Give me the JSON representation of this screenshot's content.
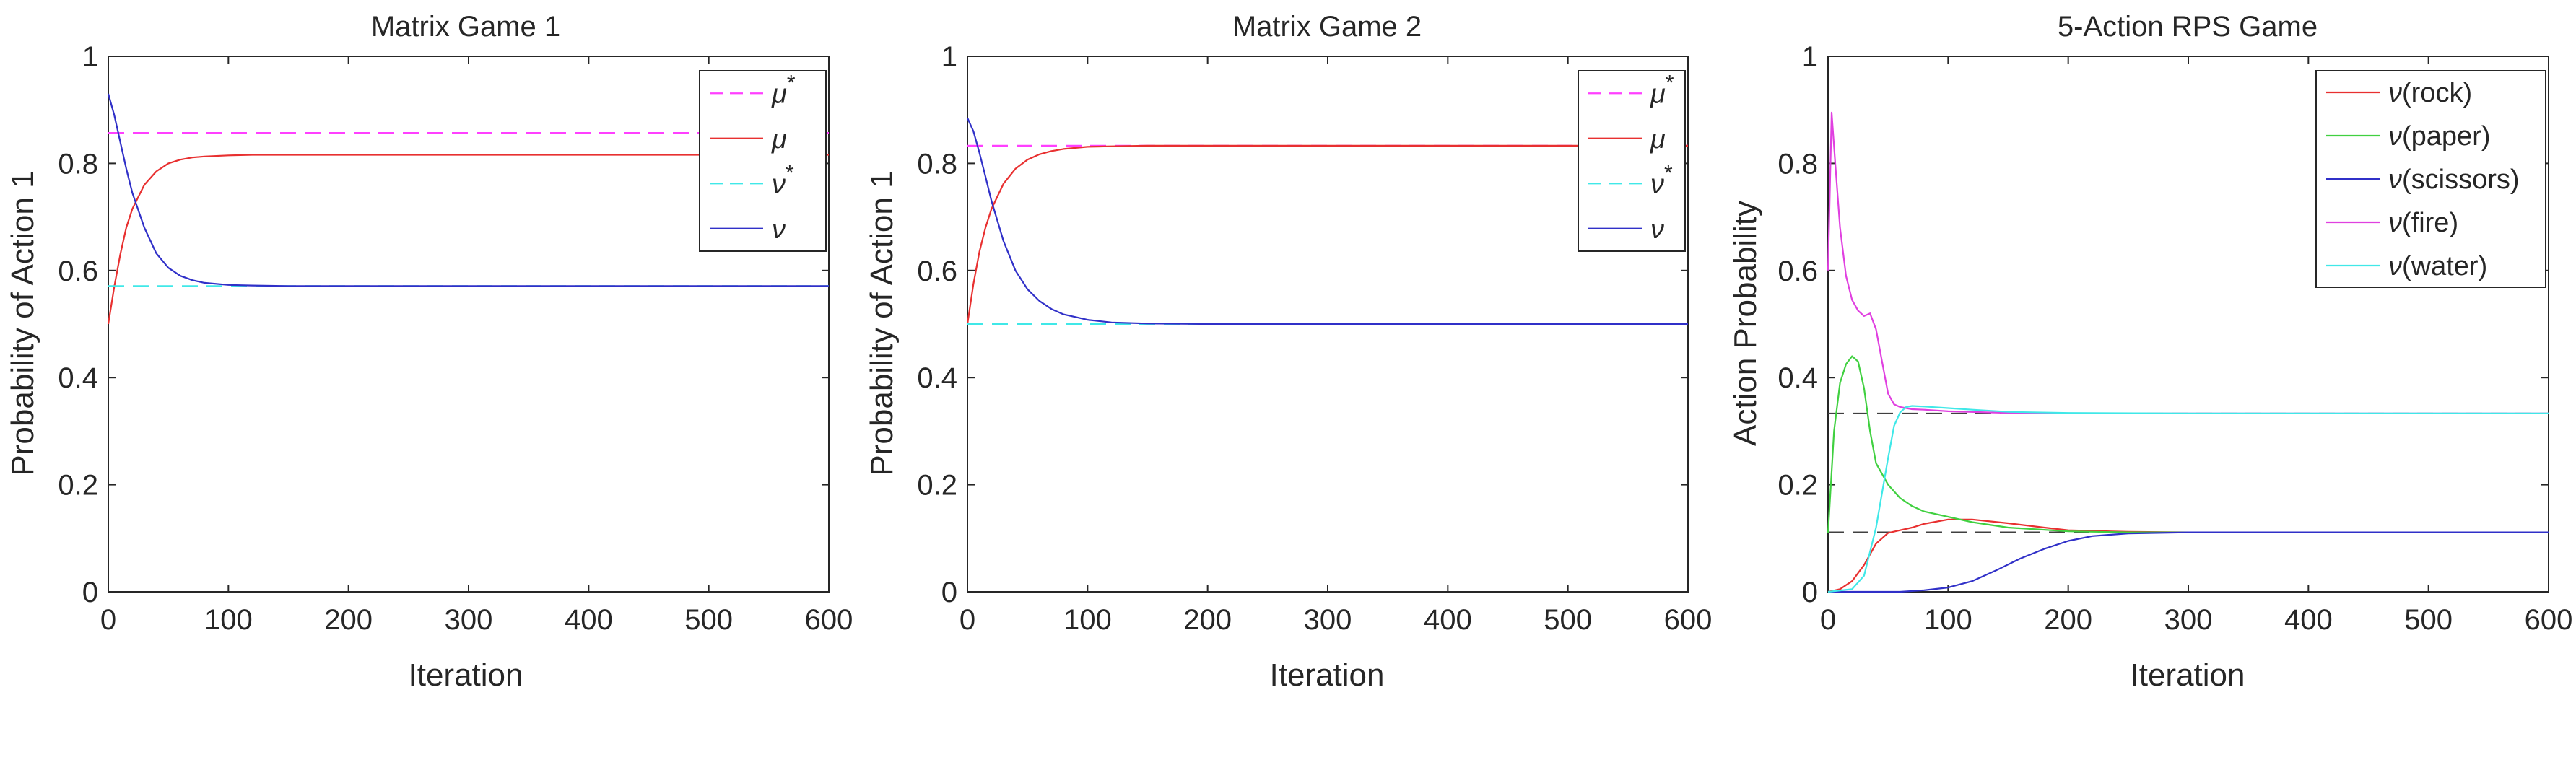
{
  "chart_data": [
    {
      "type": "line",
      "title": "Matrix Game 1",
      "xlabel": "Iteration",
      "ylabel": "Probability of Action 1",
      "xlim": [
        0,
        600
      ],
      "ylim": [
        0,
        1
      ],
      "xticks": [
        0,
        100,
        200,
        300,
        400,
        500,
        600
      ],
      "yticks": [
        0,
        0.2,
        0.4,
        0.6,
        0.8,
        1
      ],
      "grid": false,
      "legend_position": "top-right",
      "series": [
        {
          "name": "μ*",
          "legend_base": "μ",
          "legend_sup": "*",
          "style": "dashed",
          "color": "#ff40ff",
          "x": [
            0,
            600
          ],
          "y": [
            0.857,
            0.857
          ]
        },
        {
          "name": "μ",
          "legend_base": "μ",
          "legend_sup": "",
          "style": "solid",
          "color": "#e83030",
          "x": [
            0,
            5,
            10,
            15,
            20,
            30,
            40,
            50,
            60,
            70,
            80,
            100,
            120,
            150,
            200,
            300,
            400,
            500,
            600
          ],
          "y": [
            0.5,
            0.57,
            0.63,
            0.68,
            0.715,
            0.76,
            0.785,
            0.8,
            0.807,
            0.811,
            0.813,
            0.815,
            0.816,
            0.816,
            0.816,
            0.816,
            0.816,
            0.816,
            0.816
          ]
        },
        {
          "name": "ν*",
          "legend_base": "ν",
          "legend_sup": "*",
          "style": "dashed",
          "color": "#40e8e8",
          "x": [
            0,
            600
          ],
          "y": [
            0.571,
            0.571
          ]
        },
        {
          "name": "ν",
          "legend_base": "ν",
          "legend_sup": "",
          "style": "solid",
          "color": "#3030c8",
          "x": [
            0,
            5,
            10,
            15,
            20,
            30,
            40,
            50,
            60,
            70,
            80,
            100,
            120,
            150,
            200,
            300,
            400,
            500,
            600
          ],
          "y": [
            0.93,
            0.89,
            0.84,
            0.79,
            0.745,
            0.68,
            0.632,
            0.605,
            0.59,
            0.582,
            0.577,
            0.573,
            0.572,
            0.571,
            0.571,
            0.571,
            0.571,
            0.571,
            0.571
          ]
        }
      ]
    },
    {
      "type": "line",
      "title": "Matrix Game 2",
      "xlabel": "Iteration",
      "ylabel": "Probability of Action 1",
      "xlim": [
        0,
        600
      ],
      "ylim": [
        0,
        1
      ],
      "xticks": [
        0,
        100,
        200,
        300,
        400,
        500,
        600
      ],
      "yticks": [
        0,
        0.2,
        0.4,
        0.6,
        0.8,
        1
      ],
      "grid": false,
      "legend_position": "top-right",
      "series": [
        {
          "name": "μ*",
          "legend_base": "μ",
          "legend_sup": "*",
          "style": "dashed",
          "color": "#ff40ff",
          "x": [
            0,
            600
          ],
          "y": [
            0.833,
            0.833
          ]
        },
        {
          "name": "μ",
          "legend_base": "μ",
          "legend_sup": "",
          "style": "solid",
          "color": "#e83030",
          "x": [
            0,
            5,
            10,
            15,
            20,
            30,
            40,
            50,
            60,
            70,
            80,
            100,
            120,
            150,
            200,
            300,
            400,
            500,
            600
          ],
          "y": [
            0.5,
            0.575,
            0.635,
            0.68,
            0.715,
            0.762,
            0.79,
            0.807,
            0.817,
            0.823,
            0.827,
            0.831,
            0.832,
            0.833,
            0.833,
            0.833,
            0.833,
            0.833,
            0.833
          ]
        },
        {
          "name": "ν*",
          "legend_base": "ν",
          "legend_sup": "*",
          "style": "dashed",
          "color": "#40e8e8",
          "x": [
            0,
            600
          ],
          "y": [
            0.5,
            0.5
          ]
        },
        {
          "name": "ν",
          "legend_base": "ν",
          "legend_sup": "",
          "style": "solid",
          "color": "#3030c8",
          "x": [
            0,
            5,
            10,
            15,
            20,
            30,
            40,
            50,
            60,
            70,
            80,
            100,
            120,
            150,
            200,
            300,
            400,
            500,
            600
          ],
          "y": [
            0.885,
            0.86,
            0.82,
            0.775,
            0.73,
            0.655,
            0.6,
            0.565,
            0.543,
            0.528,
            0.518,
            0.508,
            0.503,
            0.501,
            0.5,
            0.5,
            0.5,
            0.5,
            0.5
          ]
        }
      ]
    },
    {
      "type": "line",
      "title": "5-Action RPS Game",
      "xlabel": "Iteration",
      "ylabel": "Action Probability",
      "xlim": [
        0,
        600
      ],
      "ylim": [
        0,
        1
      ],
      "xticks": [
        0,
        100,
        200,
        300,
        400,
        500,
        600
      ],
      "yticks": [
        0,
        0.2,
        0.4,
        0.6,
        0.8,
        1
      ],
      "grid": false,
      "legend_position": "top-right",
      "reference_lines": [
        {
          "y": 0.333,
          "style": "dashed",
          "color": "#404040"
        },
        {
          "y": 0.111,
          "style": "dashed",
          "color": "#404040"
        }
      ],
      "series": [
        {
          "name": "ν(rock)",
          "legend_base": "ν",
          "legend_suffix": "(rock)",
          "style": "solid",
          "color": "#e83030",
          "x": [
            0,
            10,
            20,
            30,
            40,
            50,
            60,
            70,
            80,
            100,
            120,
            150,
            180,
            200,
            250,
            300,
            400,
            500,
            600
          ],
          "y": [
            0.0,
            0.005,
            0.02,
            0.05,
            0.09,
            0.11,
            0.115,
            0.12,
            0.127,
            0.135,
            0.135,
            0.128,
            0.12,
            0.115,
            0.112,
            0.111,
            0.111,
            0.111,
            0.111
          ]
        },
        {
          "name": "ν(paper)",
          "legend_base": "ν",
          "legend_suffix": "(paper)",
          "style": "solid",
          "color": "#40d040",
          "x": [
            0,
            5,
            10,
            15,
            20,
            25,
            30,
            35,
            40,
            50,
            60,
            70,
            80,
            100,
            120,
            150,
            200,
            250,
            300,
            400,
            500,
            600
          ],
          "y": [
            0.11,
            0.3,
            0.39,
            0.425,
            0.44,
            0.43,
            0.38,
            0.3,
            0.24,
            0.2,
            0.175,
            0.16,
            0.15,
            0.14,
            0.13,
            0.12,
            0.113,
            0.111,
            0.111,
            0.111,
            0.111,
            0.111
          ]
        },
        {
          "name": "ν(scissors)",
          "legend_base": "ν",
          "legend_suffix": "(scissors)",
          "style": "solid",
          "color": "#3030c8",
          "x": [
            0,
            20,
            40,
            60,
            80,
            100,
            120,
            140,
            160,
            180,
            200,
            220,
            250,
            300,
            400,
            500,
            600
          ],
          "y": [
            0.0,
            0.0,
            0.0,
            0.0,
            0.003,
            0.008,
            0.02,
            0.04,
            0.062,
            0.08,
            0.095,
            0.104,
            0.109,
            0.111,
            0.111,
            0.111,
            0.111
          ]
        },
        {
          "name": "ν(fire)",
          "legend_base": "ν",
          "legend_suffix": "(fire)",
          "style": "solid",
          "color": "#e040e0",
          "x": [
            0,
            3,
            6,
            10,
            15,
            20,
            25,
            30,
            35,
            40,
            45,
            50,
            55,
            60,
            65,
            70,
            80,
            100,
            150,
            200,
            300,
            400,
            500,
            600
          ],
          "y": [
            0.6,
            0.895,
            0.8,
            0.68,
            0.59,
            0.545,
            0.525,
            0.515,
            0.52,
            0.49,
            0.43,
            0.37,
            0.35,
            0.345,
            0.343,
            0.341,
            0.34,
            0.337,
            0.334,
            0.333,
            0.333,
            0.333,
            0.333,
            0.333
          ]
        },
        {
          "name": "ν(water)",
          "legend_base": "ν",
          "legend_suffix": "(water)",
          "style": "solid",
          "color": "#40e8e8",
          "x": [
            0,
            20,
            30,
            40,
            50,
            55,
            60,
            65,
            70,
            80,
            100,
            120,
            150,
            200,
            300,
            400,
            500,
            600
          ],
          "y": [
            0.0,
            0.005,
            0.03,
            0.12,
            0.25,
            0.31,
            0.335,
            0.345,
            0.347,
            0.346,
            0.343,
            0.34,
            0.336,
            0.334,
            0.333,
            0.333,
            0.333,
            0.333
          ]
        }
      ]
    }
  ]
}
